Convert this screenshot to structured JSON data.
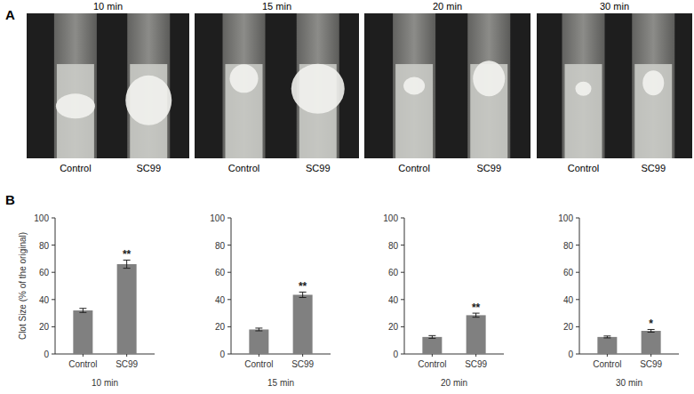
{
  "panel_a": {
    "label": "A",
    "photos": [
      {
        "title": "10 min",
        "labels": [
          "Control",
          "SC99"
        ]
      },
      {
        "title": "15 min",
        "labels": [
          "Control",
          "SC99"
        ]
      },
      {
        "title": "20 min",
        "labels": [
          "Control",
          "SC99"
        ]
      },
      {
        "title": "30 min",
        "labels": [
          "Control",
          "SC99"
        ]
      }
    ]
  },
  "panel_b_label": "B",
  "chart_data": [
    {
      "type": "bar",
      "y_label": "Clot Size (% of the original)",
      "x_label": "10 min",
      "categories": [
        "Control",
        "SC99"
      ],
      "values": [
        32,
        66
      ],
      "errors": [
        1.5,
        3
      ],
      "color": "#808080",
      "ylim": [
        0,
        100
      ],
      "yticks": [
        0,
        20,
        40,
        60,
        80,
        100
      ],
      "grid": false,
      "annotations": [
        {
          "category": "SC99",
          "text": "**"
        }
      ]
    },
    {
      "type": "bar",
      "x_label": "15 min",
      "categories": [
        "Control",
        "SC99"
      ],
      "values": [
        18,
        43.5
      ],
      "errors": [
        1,
        2
      ],
      "color": "#808080",
      "ylim": [
        0,
        100
      ],
      "yticks": [
        0,
        20,
        40,
        60,
        80,
        100
      ],
      "grid": false,
      "annotations": [
        {
          "category": "SC99",
          "text": "**"
        }
      ]
    },
    {
      "type": "bar",
      "x_label": "20 min",
      "categories": [
        "Control",
        "SC99"
      ],
      "values": [
        12.5,
        28.5
      ],
      "errors": [
        1,
        1.5
      ],
      "color": "#808080",
      "ylim": [
        0,
        100
      ],
      "yticks": [
        0,
        20,
        40,
        60,
        80,
        100
      ],
      "grid": false,
      "annotations": [
        {
          "category": "SC99",
          "text": "**"
        }
      ]
    },
    {
      "type": "bar",
      "x_label": "30 min",
      "categories": [
        "Control",
        "SC99"
      ],
      "values": [
        12.5,
        17
      ],
      "errors": [
        0.7,
        1
      ],
      "color": "#808080",
      "ylim": [
        0,
        100
      ],
      "yticks": [
        0,
        20,
        40,
        60,
        80,
        100
      ],
      "grid": false,
      "annotations": [
        {
          "category": "SC99",
          "text": "*"
        }
      ]
    }
  ]
}
